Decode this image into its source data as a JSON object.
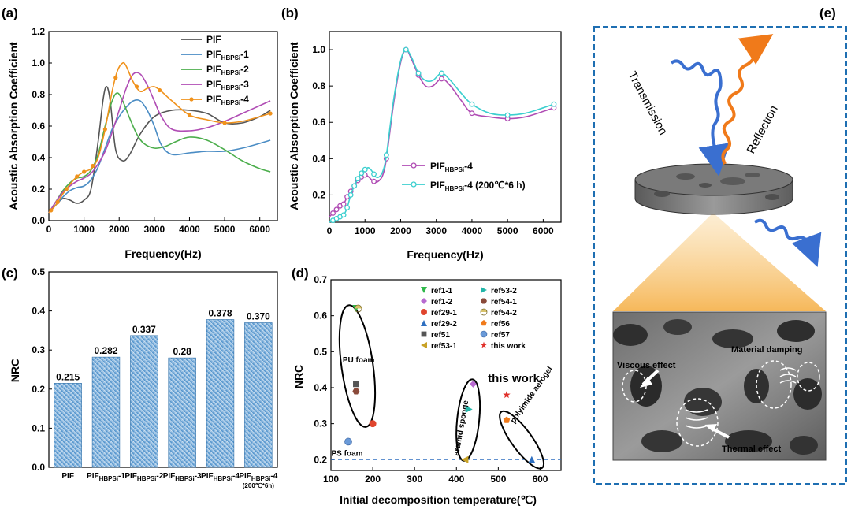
{
  "panels": {
    "a": {
      "label": "(a)",
      "xlabel": "Frequency(Hz)",
      "ylabel": "Acoustic Absorption Coefficient",
      "xlim": [
        0,
        6500
      ],
      "ylim": [
        0,
        1.2
      ],
      "xticks": [
        0,
        1000,
        2000,
        3000,
        4000,
        5000,
        6000
      ],
      "yticks": [
        0.0,
        0.2,
        0.4,
        0.6,
        0.8,
        1.0,
        1.2
      ],
      "xtick_labels": [
        "0",
        "1000",
        "2000",
        "3000",
        "4000",
        "5000",
        "6000"
      ],
      "ytick_labels": [
        "0.0",
        "0.2",
        "0.4",
        "0.6",
        "0.8",
        "1.0",
        "1.2"
      ],
      "legend_position": "top-right",
      "series": [
        {
          "name": "PIF",
          "base": "PIF",
          "sub": "",
          "suffix": "",
          "color": "#555555",
          "x": [
            0,
            200,
            400,
            600,
            800,
            1000,
            1200,
            1400,
            1550,
            1650,
            1750,
            1900,
            2100,
            2300,
            2600,
            3000,
            3500,
            4000,
            4500,
            5000,
            5500,
            6000,
            6300
          ],
          "y": [
            0.05,
            0.1,
            0.14,
            0.13,
            0.11,
            0.13,
            0.2,
            0.5,
            0.78,
            0.85,
            0.75,
            0.45,
            0.38,
            0.42,
            0.55,
            0.66,
            0.7,
            0.7,
            0.68,
            0.62,
            0.62,
            0.66,
            0.7
          ]
        },
        {
          "name": "PIF-HBPSi-1",
          "base": "PIF",
          "sub": "HBPSi",
          "suffix": "-1",
          "color": "#4a8cc4",
          "x": [
            0,
            200,
            400,
            600,
            800,
            1000,
            1200,
            1400,
            1600,
            1800,
            2000,
            2200,
            2400,
            2600,
            2800,
            3000,
            3200,
            3500,
            4000,
            4500,
            5000,
            5500,
            6000,
            6300
          ],
          "y": [
            0.05,
            0.1,
            0.15,
            0.19,
            0.21,
            0.22,
            0.26,
            0.34,
            0.46,
            0.58,
            0.66,
            0.72,
            0.76,
            0.76,
            0.7,
            0.6,
            0.48,
            0.42,
            0.43,
            0.44,
            0.44,
            0.46,
            0.49,
            0.51
          ]
        },
        {
          "name": "PIF-HBPSi-2",
          "base": "PIF",
          "sub": "HBPSi",
          "suffix": "-2",
          "color": "#4cae4c",
          "x": [
            0,
            200,
            400,
            600,
            800,
            1000,
            1200,
            1400,
            1600,
            1800,
            1950,
            2100,
            2300,
            2500,
            2700,
            3000,
            3300,
            3600,
            4000,
            4500,
            5000,
            5500,
            6000,
            6300
          ],
          "y": [
            0.05,
            0.12,
            0.19,
            0.24,
            0.27,
            0.28,
            0.32,
            0.42,
            0.6,
            0.76,
            0.81,
            0.76,
            0.65,
            0.55,
            0.49,
            0.46,
            0.47,
            0.5,
            0.53,
            0.51,
            0.45,
            0.38,
            0.33,
            0.31
          ]
        },
        {
          "name": "PIF-HBPSi-3",
          "base": "PIF",
          "sub": "HBPSi",
          "suffix": "-3",
          "color": "#b04cb4",
          "x": [
            0,
            200,
            400,
            600,
            800,
            1000,
            1200,
            1400,
            1600,
            1800,
            2000,
            2200,
            2400,
            2600,
            2800,
            3000,
            3200,
            3500,
            4000,
            4500,
            5000,
            5500,
            6000,
            6300
          ],
          "y": [
            0.05,
            0.12,
            0.18,
            0.22,
            0.25,
            0.27,
            0.3,
            0.36,
            0.44,
            0.56,
            0.7,
            0.84,
            0.93,
            0.93,
            0.86,
            0.76,
            0.66,
            0.58,
            0.57,
            0.59,
            0.63,
            0.68,
            0.73,
            0.76
          ]
        },
        {
          "name": "PIF-HBPSi-4",
          "base": "PIF",
          "sub": "HBPSi",
          "suffix": "-4",
          "color": "#f0921c",
          "marker": "circle",
          "x": [
            0,
            200,
            400,
            600,
            800,
            1000,
            1200,
            1400,
            1600,
            1800,
            1950,
            2100,
            2200,
            2400,
            2600,
            2800,
            3000,
            3200,
            3500,
            4000,
            4500,
            5000,
            5500,
            6000,
            6300
          ],
          "y": [
            0.05,
            0.1,
            0.17,
            0.23,
            0.28,
            0.31,
            0.33,
            0.4,
            0.58,
            0.82,
            0.95,
            1.0,
            0.98,
            0.88,
            0.82,
            0.84,
            0.85,
            0.82,
            0.76,
            0.67,
            0.64,
            0.62,
            0.63,
            0.66,
            0.68
          ],
          "marker_x": [
            63,
            250,
            500,
            800,
            1000,
            1250,
            1600,
            1900,
            2500,
            3150,
            4000,
            5000,
            6300
          ]
        }
      ]
    },
    "b": {
      "label": "(b)",
      "xlabel": "Frequency(Hz)",
      "ylabel": "Acoustic Absorption Coefficient",
      "xlim": [
        0,
        6500
      ],
      "ylim": [
        0.05,
        1.1
      ],
      "xticks": [
        0,
        1000,
        2000,
        3000,
        4000,
        5000,
        6000
      ],
      "yticks": [
        0.0,
        0.2,
        0.4,
        0.6,
        0.8,
        1.0
      ],
      "xtick_labels": [
        "0",
        "1000",
        "2000",
        "3000",
        "4000",
        "5000",
        "6000"
      ],
      "ytick_labels": [
        "0.0",
        "0.2",
        "0.4",
        "0.6",
        "0.8",
        "1.0"
      ],
      "legend_position": "bottom-right",
      "series": [
        {
          "name": "PIF-HBPSi-4",
          "base": "PIF",
          "sub": "HBPSi",
          "suffix": "-4",
          "color": "#b04cb4",
          "x": [
            0,
            100,
            200,
            300,
            400,
            500,
            600,
            700,
            800,
            900,
            1000,
            1100,
            1200,
            1300,
            1400,
            1500,
            1600,
            1800,
            2000,
            2150,
            2300,
            2500,
            2700,
            2900,
            3150,
            3400,
            3700,
            4000,
            4500,
            5000,
            5500,
            6000,
            6300
          ],
          "y": [
            0.08,
            0.1,
            0.12,
            0.14,
            0.15,
            0.19,
            0.22,
            0.25,
            0.28,
            0.3,
            0.31,
            0.3,
            0.28,
            0.27,
            0.28,
            0.31,
            0.4,
            0.7,
            0.93,
            1.0,
            0.95,
            0.86,
            0.8,
            0.8,
            0.84,
            0.8,
            0.72,
            0.65,
            0.63,
            0.62,
            0.63,
            0.66,
            0.68
          ],
          "marker_x": [
            100,
            200,
            300,
            400,
            500,
            600,
            700,
            800,
            900,
            1000,
            1250,
            1600,
            2150,
            2500,
            3150,
            4000,
            5000,
            6300
          ]
        },
        {
          "name": "PIF-HBPSi-4 (200℃*6 h)",
          "base": "PIF",
          "sub": "HBPSi",
          "suffix": "-4 (200℃*6 h)",
          "color": "#3ccfcf",
          "x": [
            0,
            100,
            200,
            300,
            400,
            500,
            600,
            700,
            800,
            900,
            1000,
            1100,
            1200,
            1300,
            1400,
            1500,
            1600,
            1800,
            2000,
            2150,
            2300,
            2500,
            2700,
            2900,
            3150,
            3400,
            3700,
            4000,
            4500,
            5000,
            5500,
            6000,
            6300
          ],
          "y": [
            0.05,
            0.06,
            0.07,
            0.08,
            0.09,
            0.13,
            0.2,
            0.25,
            0.29,
            0.32,
            0.34,
            0.35,
            0.33,
            0.3,
            0.3,
            0.33,
            0.42,
            0.72,
            0.94,
            1.0,
            0.96,
            0.87,
            0.83,
            0.83,
            0.87,
            0.83,
            0.76,
            0.7,
            0.65,
            0.64,
            0.65,
            0.68,
            0.7
          ],
          "marker_x": [
            100,
            200,
            300,
            400,
            500,
            600,
            700,
            800,
            900,
            1000,
            1250,
            1600,
            2150,
            2500,
            3150,
            4000,
            5000,
            6300
          ]
        }
      ]
    },
    "c": {
      "label": "(c)",
      "type": "bar",
      "ylabel": "NRC",
      "ylim": [
        0,
        0.5
      ],
      "yticks": [
        0.0,
        0.1,
        0.2,
        0.3,
        0.4,
        0.5
      ],
      "ytick_labels": [
        "0.0",
        "0.1",
        "0.2",
        "0.3",
        "0.4",
        "0.5"
      ],
      "categories": [
        {
          "name": "PIF",
          "base": "PIF",
          "sub": "",
          "suffix": "",
          "extra": ""
        },
        {
          "name": "PIF-HBPSi-1",
          "base": "PIF",
          "sub": "HBPSi",
          "suffix": "-1",
          "extra": ""
        },
        {
          "name": "PIF-HBPSi-2",
          "base": "PIF",
          "sub": "HBPSi",
          "suffix": "-2",
          "extra": ""
        },
        {
          "name": "PIF-HBPSi-3",
          "base": "PIF",
          "sub": "HBPSi",
          "suffix": "-3",
          "extra": ""
        },
        {
          "name": "PIF-HBPSi-4",
          "base": "PIF",
          "sub": "HBPSi",
          "suffix": "-4",
          "extra": ""
        },
        {
          "name": "PIF-HBPSi-4 (200℃*6h)",
          "base": "PIF",
          "sub": "HBPSi",
          "suffix": "-4",
          "extra": "(200℃*6h)"
        }
      ],
      "values": [
        0.215,
        0.282,
        0.337,
        0.28,
        0.378,
        0.37
      ],
      "value_labels": [
        "0.215",
        "0.282",
        "0.337",
        "0.28",
        "0.378",
        "0.370"
      ]
    },
    "d": {
      "label": "(d)",
      "type": "scatter",
      "xlabel": "Initial decomposition temperature(℃)",
      "ylabel": "NRC",
      "xlim": [
        100,
        650
      ],
      "ylim": [
        0.17,
        0.7
      ],
      "xticks": [
        100,
        200,
        300,
        400,
        500,
        600
      ],
      "yticks": [
        0.2,
        0.3,
        0.4,
        0.5,
        0.6,
        0.7
      ],
      "xtick_labels": [
        "100",
        "200",
        "300",
        "400",
        "500",
        "600"
      ],
      "ytick_labels": [
        "0.2",
        "0.3",
        "0.4",
        "0.5",
        "0.6",
        "0.7"
      ],
      "reference_line_y": 0.2,
      "legend_position": "top",
      "points": [
        {
          "name": "ref1-1",
          "shape": "tri-down",
          "color": "#2fb84a",
          "x": 160,
          "y": 0.62
        },
        {
          "name": "ref1-2",
          "shape": "diamond",
          "color": "#b86ad0",
          "x": 440,
          "y": 0.41
        },
        {
          "name": "ref29-1",
          "shape": "circle",
          "color": "#e0452e",
          "x": 200,
          "y": 0.3
        },
        {
          "name": "ref29-2",
          "shape": "tri-up",
          "color": "#2e6fc0",
          "x": 580,
          "y": 0.2
        },
        {
          "name": "ref51",
          "shape": "square",
          "color": "#555555",
          "x": 160,
          "y": 0.41
        },
        {
          "name": "ref53-1",
          "shape": "tri-left",
          "color": "#c8a227",
          "x": 420,
          "y": 0.2
        },
        {
          "name": "ref53-2",
          "shape": "tri-right",
          "color": "#22b5a8",
          "x": 430,
          "y": 0.34
        },
        {
          "name": "ref54-1",
          "shape": "hexagon",
          "color": "#8a4a3a",
          "x": 160,
          "y": 0.39
        },
        {
          "name": "ref54-2",
          "shape": "half-circle",
          "color": "#d8c26a",
          "x": 165,
          "y": 0.62
        },
        {
          "name": "ref56",
          "shape": "pentagon",
          "color": "#f07a1a",
          "x": 520,
          "y": 0.31
        },
        {
          "name": "ref57",
          "shape": "sphere",
          "color": "#6a9ad8",
          "x": 95,
          "y": 0.25
        },
        {
          "name": "this work",
          "shape": "star",
          "color": "#e0302a",
          "x": 520,
          "y": 0.38
        }
      ],
      "annotations": [
        "PU foam",
        "PS foam",
        "aramid sponge",
        "polyimide aerogel",
        "this work"
      ]
    },
    "e": {
      "label": "(e)",
      "arrow_labels": [
        "Transmission",
        "Reflection"
      ],
      "sem_labels": [
        "Viscous effect",
        "Material damping",
        "Thermal effect"
      ]
    }
  },
  "colors": {
    "bar_fill": "#6aa6d6",
    "bar_stroke": "#2f6fa8",
    "frame": "#1f6fb2"
  }
}
